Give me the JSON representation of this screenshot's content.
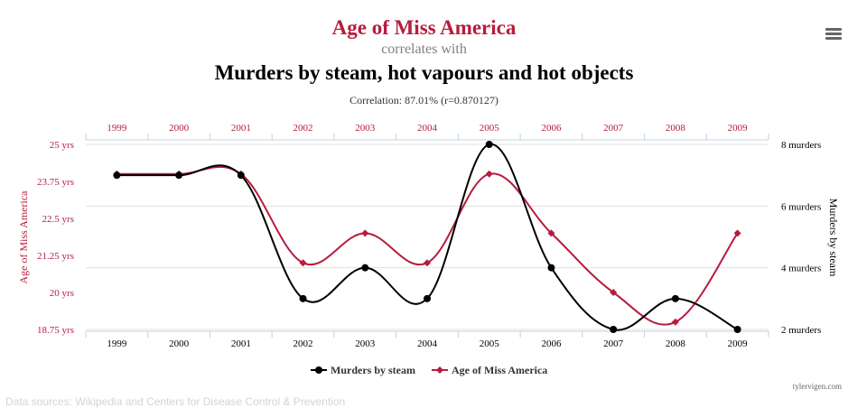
{
  "header": {
    "title_a": "Age of Miss America",
    "correlates": "correlates with",
    "title_b": "Murders by steam, hot vapours and hot objects",
    "subtitle": "Correlation: 87.01% (r=0.870127)"
  },
  "menu": {
    "icon": "hamburger-menu-icon"
  },
  "credit": "tylervigen.com",
  "sources": "Data sources: Wikipedia and Centers for Disease Control & Prevention",
  "colors": {
    "miss_america": "#b71c3c",
    "murders": "#000000",
    "grid": "#e0e0e0",
    "axis": "#c0d0e0"
  },
  "chart_data": {
    "type": "line",
    "x": [
      "1999",
      "2000",
      "2001",
      "2002",
      "2003",
      "2004",
      "2005",
      "2006",
      "2007",
      "2008",
      "2009"
    ],
    "series": [
      {
        "name": "Murders by steam",
        "axis": "right",
        "values": [
          7,
          7,
          7,
          3,
          4,
          3,
          8,
          4,
          2,
          3,
          2
        ]
      },
      {
        "name": "Age of Miss America",
        "axis": "left",
        "values": [
          24,
          24,
          24,
          21,
          22,
          21,
          24,
          22,
          20,
          19,
          22
        ]
      }
    ],
    "left_axis": {
      "label": "Age of Miss America",
      "ticks": [
        "25 yrs",
        "23.75 yrs",
        "22.5 yrs",
        "21.25 yrs",
        "20 yrs",
        "18.75 yrs"
      ],
      "tick_values": [
        25,
        23.75,
        22.5,
        21.25,
        20,
        18.75
      ],
      "range": [
        18.75,
        25
      ]
    },
    "right_axis": {
      "label": "Murders by steam",
      "ticks": [
        "8 murders",
        "6 murders",
        "4 murders",
        "2 murders"
      ],
      "tick_values": [
        8,
        6,
        4,
        2
      ],
      "range": [
        2,
        8
      ]
    },
    "grid": true,
    "legend": {
      "position": "bottom-center",
      "entries": [
        "Murders by steam",
        "Age of Miss America"
      ]
    }
  }
}
